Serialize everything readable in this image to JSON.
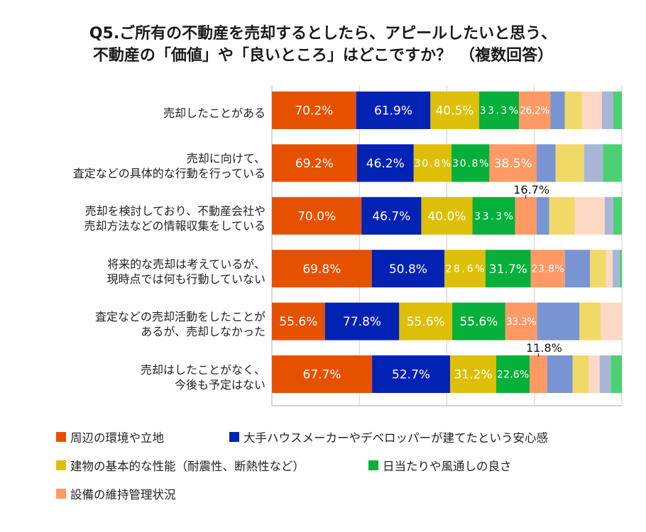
{
  "chart_data": {
    "type": "bar",
    "orientation": "horizontal",
    "stacked": "percent",
    "title_lines": [
      "Q5.ご所有の不動産を売却するとしたら、アピールしたいと思う、",
      "不動産の「価値」や「良いところ」はどこですか？　（複数回答）"
    ],
    "xlabel": "",
    "ylabel": "",
    "xlim": [
      0,
      100
    ],
    "grid": true,
    "gridlines_at_percent": [
      25,
      50,
      75
    ],
    "legend_position": "bottom",
    "categories": [
      [
        "売却したことがある"
      ],
      [
        "売却に向けて、",
        "査定などの具体的な行動を行っている"
      ],
      [
        "売却を検討しており、不動産会社や",
        "売却方法などの情報収集をしている"
      ],
      [
        "将来的な売却は考えているが、",
        "現時点では何も行動していない"
      ],
      [
        "査定などの売却活動をしたことが",
        "あるが、売却しなかった"
      ],
      [
        "売却はしたことがなく、",
        "今後も予定はない"
      ]
    ],
    "series": [
      {
        "name": "周辺の環境や立地",
        "color": "#E65100",
        "label_color": "#ffffff",
        "in_legend": true,
        "values": [
          70.2,
          69.2,
          70.0,
          69.8,
          55.6,
          67.7
        ],
        "labels": [
          "70.2%",
          "69.2%",
          "70.0%",
          "69.8%",
          "55.6%",
          "67.7%"
        ]
      },
      {
        "name": "大手ハウスメーカーやデベロッパーが建てたという安心感",
        "color": "#0222B4",
        "label_color": "#ffffff",
        "in_legend": true,
        "values": [
          61.9,
          46.2,
          46.7,
          50.8,
          77.8,
          52.7
        ],
        "labels": [
          "61.9%",
          "46.2%",
          "46.7%",
          "50.8%",
          "77.8%",
          "52.7%"
        ]
      },
      {
        "name": "建物の基本的な性能（耐震性、断熱性など）",
        "color": "#DDBF0A",
        "label_color": "#ffffff",
        "in_legend": true,
        "values": [
          40.5,
          30.8,
          40.0,
          28.6,
          55.6,
          31.2
        ],
        "labels": [
          "40.5%",
          "30.8%",
          "40.0%",
          "28.6%",
          "55.6%",
          "31.2%"
        ]
      },
      {
        "name": "日当たりや風通しの良さ",
        "color": "#07B03A",
        "label_color": "#ffffff",
        "in_legend": true,
        "values": [
          33.3,
          30.8,
          33.3,
          31.7,
          55.6,
          22.6
        ],
        "labels": [
          "33.3%",
          "30.8%",
          "33.3%",
          "31.7%",
          "55.6%",
          "22.6%"
        ]
      },
      {
        "name": "設備の維持管理状況",
        "color": "#FF9966",
        "label_color": "#ffffff",
        "in_legend": true,
        "values": [
          26.2,
          38.5,
          16.7,
          23.8,
          33.3,
          11.8
        ],
        "labels": [
          "26.2%",
          "38.5%",
          "16.7%",
          "23.8%",
          "33.3%",
          "11.8%"
        ],
        "external_label_rows": [
          2,
          5
        ]
      },
      {
        "name": "",
        "color": "#7894D3",
        "in_legend": false,
        "approximate": true,
        "values": [
          11.9,
          15.4,
          10.0,
          17.5,
          44.4,
          17.2
        ],
        "labels": [
          "",
          "",
          "",
          "",
          "",
          ""
        ]
      },
      {
        "name": "",
        "color": "#F1D968",
        "in_legend": false,
        "approximate": true,
        "values": [
          14.3,
          23.1,
          20.0,
          11.1,
          22.2,
          10.8
        ],
        "labels": [
          "",
          "",
          "",
          "",
          "",
          ""
        ]
      },
      {
        "name": "",
        "color": "#FDD8C5",
        "in_legend": false,
        "approximate": true,
        "values": [
          16.7,
          0,
          23.3,
          4.8,
          22.2,
          7.5
        ],
        "labels": [
          "",
          "",
          "",
          "",
          "",
          ""
        ]
      },
      {
        "name": "",
        "color": "#A7B6D7",
        "in_legend": false,
        "approximate": true,
        "values": [
          9.5,
          15.4,
          6.7,
          4.8,
          0,
          7.5
        ],
        "labels": [
          "",
          "",
          "",
          "",
          "",
          ""
        ]
      },
      {
        "name": "",
        "color": "#4CD071",
        "in_legend": false,
        "approximate": true,
        "values": [
          7.1,
          15.4,
          6.7,
          1.6,
          0,
          7.5
        ],
        "labels": [
          "",
          "",
          "",
          "",
          "",
          ""
        ]
      }
    ]
  }
}
